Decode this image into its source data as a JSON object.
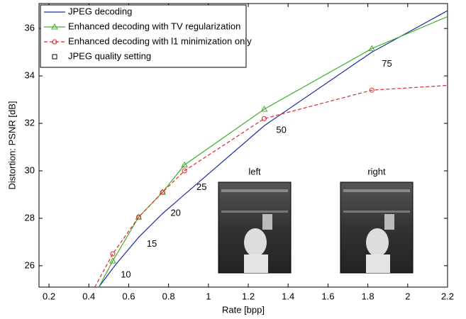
{
  "chart_data": {
    "type": "line",
    "x_label": "Rate [bpp]",
    "y_label": "Distortion: PSNR [dB]",
    "xlim": [
      0.15,
      2.2
    ],
    "ylim": [
      25.1,
      37.05
    ],
    "xticks": [
      0.2,
      0.4,
      0.6,
      0.8,
      1,
      1.2,
      1.4,
      1.6,
      1.8,
      2,
      2.2
    ],
    "yticks": [
      26,
      28,
      30,
      32,
      34,
      36
    ],
    "series": [
      {
        "name": "JPEG decoding",
        "color": "#1f2f9e",
        "marker": "none",
        "dash": "solid",
        "x": [
          0.45,
          0.53,
          0.65,
          0.77,
          0.88,
          1.28,
          1.82,
          2.2
        ],
        "values": [
          25.1,
          26.0,
          27.2,
          28.2,
          29.0,
          31.9,
          35.0,
          36.75
        ]
      },
      {
        "name": "Enhanced decoding with TV regularization",
        "color": "#3fae2a",
        "marker": "triangle",
        "dash": "solid",
        "x": [
          0.45,
          0.52,
          0.65,
          0.77,
          0.88,
          1.28,
          1.82,
          2.2
        ],
        "values": [
          25.1,
          26.2,
          28.05,
          29.1,
          30.25,
          32.6,
          35.15,
          36.5
        ]
      },
      {
        "name": "Enhanced decoding with l1 minimization only",
        "color": "#e0262b",
        "marker": "circle",
        "dash": "dashed",
        "x": [
          0.43,
          0.52,
          0.65,
          0.77,
          0.88,
          1.28,
          1.82,
          2.2
        ],
        "values": [
          25.1,
          26.5,
          28.05,
          29.1,
          30.0,
          32.2,
          33.4,
          33.6
        ]
      }
    ],
    "quality_labels": {
      "name": "JPEG quality setting",
      "labels": [
        {
          "text": "10",
          "x": 0.56,
          "y": 25.6
        },
        {
          "text": "15",
          "x": 0.69,
          "y": 26.9
        },
        {
          "text": "20",
          "x": 0.81,
          "y": 28.2
        },
        {
          "text": "25",
          "x": 0.94,
          "y": 29.3
        },
        {
          "text": "50",
          "x": 1.34,
          "y": 31.7
        },
        {
          "text": "75",
          "x": 1.87,
          "y": 34.5
        }
      ]
    },
    "insets": [
      "left",
      "right"
    ]
  }
}
